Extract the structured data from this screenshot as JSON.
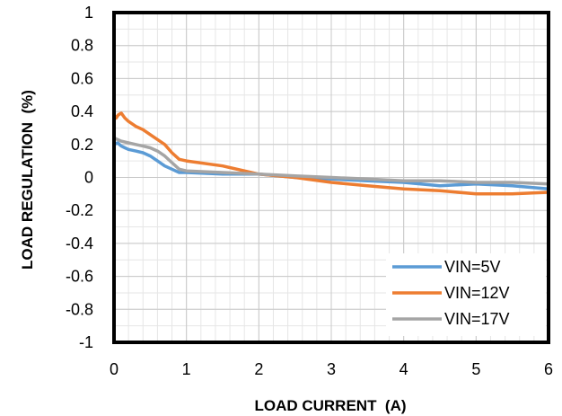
{
  "chart_data": {
    "type": "line",
    "xlabel": "LOAD CURRENT  (A)",
    "ylabel": "LOAD REGULATION  (%)",
    "xlim": [
      0,
      6
    ],
    "ylim": [
      -1,
      1
    ],
    "xticks": [
      0,
      1,
      2,
      3,
      4,
      5,
      6
    ],
    "yticks": [
      1,
      0.8,
      0.6,
      0.4,
      0.2,
      0,
      -0.2,
      -0.4,
      -0.6,
      -0.8,
      -1
    ],
    "xtick_labels": [
      "0",
      "1",
      "2",
      "3",
      "4",
      "5",
      "6"
    ],
    "ytick_labels": [
      "1",
      "0.8",
      "0.6",
      "0.4",
      "0.2",
      "0",
      "-0.2",
      "-0.4",
      "-0.6",
      "-0.8",
      "-1"
    ],
    "grid": true,
    "minor_grid": true,
    "legend_position": "bottom-right",
    "series": [
      {
        "name": "VIN=5V",
        "color": "#5b9bd5",
        "x": [
          0,
          0.05,
          0.1,
          0.15,
          0.2,
          0.3,
          0.4,
          0.5,
          0.6,
          0.7,
          0.8,
          0.9,
          1.0,
          1.5,
          2.0,
          2.5,
          3.0,
          3.5,
          4.0,
          4.5,
          5.0,
          5.5,
          6.0
        ],
        "y": [
          0.2,
          0.21,
          0.19,
          0.18,
          0.17,
          0.16,
          0.15,
          0.13,
          0.1,
          0.07,
          0.05,
          0.03,
          0.03,
          0.02,
          0.02,
          0.0,
          -0.01,
          -0.02,
          -0.03,
          -0.05,
          -0.04,
          -0.05,
          -0.07
        ]
      },
      {
        "name": "VIN=12V",
        "color": "#ed7d31",
        "x": [
          0,
          0.03,
          0.06,
          0.1,
          0.15,
          0.2,
          0.3,
          0.4,
          0.5,
          0.6,
          0.7,
          0.8,
          0.9,
          1.0,
          1.5,
          2.0,
          2.5,
          3.0,
          3.5,
          4.0,
          4.5,
          5.0,
          5.5,
          6.0
        ],
        "y": [
          0.38,
          0.36,
          0.38,
          0.39,
          0.36,
          0.34,
          0.31,
          0.29,
          0.26,
          0.23,
          0.2,
          0.15,
          0.11,
          0.1,
          0.07,
          0.02,
          0.0,
          -0.03,
          -0.05,
          -0.07,
          -0.08,
          -0.1,
          -0.1,
          -0.09
        ]
      },
      {
        "name": "VIN=17V",
        "color": "#a5a5a5",
        "x": [
          0,
          0.05,
          0.1,
          0.2,
          0.3,
          0.4,
          0.5,
          0.6,
          0.7,
          0.8,
          0.9,
          1.0,
          1.5,
          2.0,
          2.5,
          3.0,
          3.5,
          4.0,
          4.5,
          5.0,
          5.5,
          6.0
        ],
        "y": [
          0.24,
          0.23,
          0.22,
          0.21,
          0.2,
          0.19,
          0.18,
          0.16,
          0.13,
          0.09,
          0.05,
          0.04,
          0.03,
          0.02,
          0.01,
          0.0,
          -0.01,
          -0.02,
          -0.02,
          -0.03,
          -0.03,
          -0.04
        ]
      }
    ]
  }
}
